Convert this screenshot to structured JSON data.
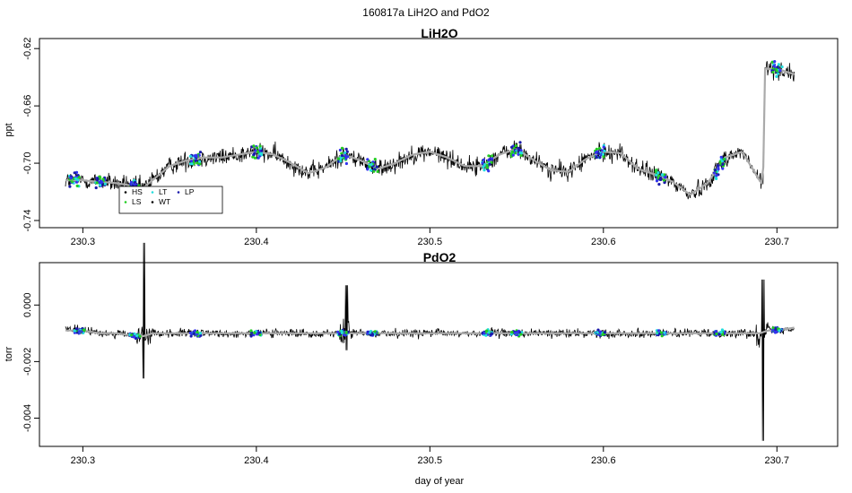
{
  "figure": {
    "suptitle": "160817a   LiH2O and PdO2",
    "xlabel": "day of year"
  },
  "colors": {
    "raw": "#000000",
    "smooth": "#aaaaaa",
    "HS": "#000000",
    "LS": "#22cc22",
    "LT": "#22dddd",
    "WT": "#000000",
    "LP": "#1a1aaa",
    "marker": "#3333ee"
  },
  "chart_data": [
    {
      "type": "line",
      "title": "LiH2O",
      "ylabel": "ppt",
      "xlabel": "",
      "xlim": [
        230.275,
        230.735
      ],
      "ylim": [
        -0.745,
        -0.613
      ],
      "xticks": [
        230.3,
        230.4,
        230.5,
        230.6,
        230.7
      ],
      "xtick_labels": [
        "230.3",
        "230.4",
        "230.5",
        "230.6",
        "230.7"
      ],
      "yticks": [
        -0.74,
        -0.7,
        -0.66,
        -0.62
      ],
      "ytick_labels": [
        "-0.74",
        "-0.70",
        "-0.66",
        "-0.62"
      ],
      "grid": false,
      "legend": {
        "placement": "bottom-left",
        "entries": [
          "HS",
          "LS",
          "LT",
          "WT",
          "LP"
        ]
      },
      "series": [
        {
          "x": [
            230.29,
            230.3,
            230.31,
            230.32,
            230.33,
            230.335,
            230.34,
            230.35,
            230.36,
            230.37,
            230.38,
            230.39,
            230.4,
            230.41,
            230.42,
            230.43,
            230.44,
            230.45,
            230.46,
            230.47,
            230.48,
            230.49,
            230.5,
            230.51,
            230.52,
            230.53,
            230.54,
            230.55,
            230.56,
            230.57,
            230.58,
            230.59,
            230.6,
            230.61,
            230.62,
            230.63,
            230.64,
            230.65,
            230.66,
            230.67,
            230.68,
            230.69,
            230.692,
            230.693,
            230.7,
            230.71
          ],
          "values": [
            -0.712,
            -0.712,
            -0.713,
            -0.714,
            -0.716,
            -0.717,
            -0.712,
            -0.702,
            -0.698,
            -0.696,
            -0.696,
            -0.694,
            -0.692,
            -0.694,
            -0.7,
            -0.707,
            -0.703,
            -0.694,
            -0.698,
            -0.704,
            -0.7,
            -0.694,
            -0.692,
            -0.696,
            -0.702,
            -0.702,
            -0.694,
            -0.69,
            -0.698,
            -0.705,
            -0.706,
            -0.697,
            -0.692,
            -0.693,
            -0.704,
            -0.708,
            -0.713,
            -0.722,
            -0.714,
            -0.696,
            -0.692,
            -0.712,
            -0.715,
            -0.634,
            -0.634,
            -0.638
          ]
        }
      ]
    },
    {
      "type": "line",
      "title": "PdO2",
      "ylabel": "torr",
      "xlabel": "day of year",
      "xlim": [
        230.275,
        230.735
      ],
      "ylim": [
        -0.005,
        0.0015
      ],
      "xticks": [
        230.3,
        230.4,
        230.5,
        230.6,
        230.7
      ],
      "xtick_labels": [
        "230.3",
        "230.4",
        "230.5",
        "230.6",
        "230.7"
      ],
      "yticks": [
        -0.004,
        -0.002,
        0.0
      ],
      "ytick_labels": [
        "-0.004",
        "-0.002",
        "0.000"
      ],
      "grid": false,
      "series": [
        {
          "x": [
            230.29,
            230.3,
            230.31,
            230.32,
            230.33,
            230.335,
            230.34,
            230.4,
            230.45,
            230.452,
            230.5,
            230.55,
            230.6,
            230.65,
            230.69,
            230.695,
            230.7,
            230.71
          ],
          "values": [
            -0.0009,
            -0.0009,
            -0.001,
            -0.001,
            -0.0011,
            -0.0011,
            -0.001,
            -0.001,
            -0.001,
            -0.001,
            -0.001,
            -0.001,
            -0.001,
            -0.001,
            -0.001,
            -0.0009,
            -0.0009,
            -0.0008
          ]
        }
      ]
    }
  ]
}
